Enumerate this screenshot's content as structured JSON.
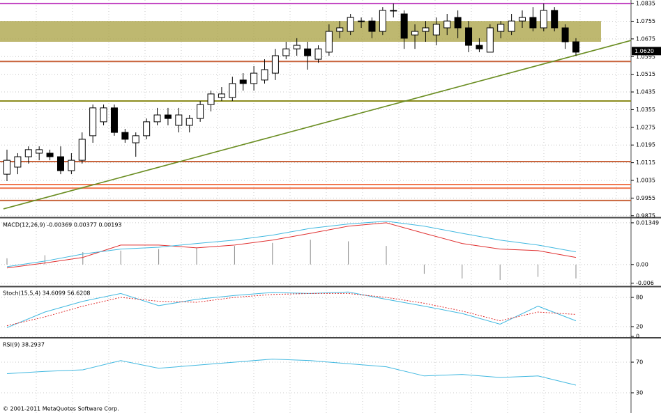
{
  "chart_data": [
    {
      "type": "candlestick",
      "bull_color": "#ffffff",
      "bear_color": "#000000",
      "grid": true,
      "ylim": [
        0.9868,
        1.0851
      ],
      "yticks": [
        1.0835,
        1.0755,
        1.0675,
        1.0595,
        1.0515,
        1.0435,
        1.0355,
        1.0275,
        1.0195,
        1.0115,
        1.0035,
        0.9955,
        0.9875
      ],
      "last_price": {
        "value": 1.062,
        "label": "1.0620"
      },
      "open": [
        1.0063,
        1.0095,
        1.0142,
        1.0158,
        1.0158,
        1.0142,
        1.0079,
        1.0126,
        1.0237,
        1.03,
        1.0363,
        1.0252,
        1.0205,
        1.0237,
        1.03,
        1.0331,
        1.0284,
        1.0284,
        1.0315,
        1.0378,
        1.041,
        1.041,
        1.0489,
        1.0473,
        1.0489,
        1.052,
        1.0599,
        1.063,
        1.063,
        1.0583,
        1.0615,
        1.0709,
        1.0709,
        1.0756,
        1.0756,
        1.0709,
        1.0804,
        1.0788,
        1.0693,
        1.0709,
        1.0693,
        1.0725,
        1.0772,
        1.0725,
        1.0646,
        1.0615,
        1.0709,
        1.0709,
        1.0756,
        1.0772,
        1.0725,
        1.0804,
        1.0725,
        1.0662
      ],
      "high": [
        1.0174,
        1.0158,
        1.0189,
        1.0189,
        1.0174,
        1.0189,
        1.0158,
        1.0252,
        1.0378,
        1.0378,
        1.0378,
        1.0268,
        1.0252,
        1.0315,
        1.0363,
        1.0363,
        1.0363,
        1.0331,
        1.0394,
        1.0441,
        1.0457,
        1.0504,
        1.052,
        1.0552,
        1.0583,
        1.063,
        1.0662,
        1.0678,
        1.0662,
        1.0646,
        1.0741,
        1.0756,
        1.0788,
        1.0772,
        1.0772,
        1.0819,
        1.0835,
        1.0804,
        1.0741,
        1.0756,
        1.0772,
        1.0788,
        1.0804,
        1.0756,
        1.0678,
        1.0741,
        1.0756,
        1.0788,
        1.0804,
        1.0819,
        1.0835,
        1.0819,
        1.0741,
        1.0678
      ],
      "low": [
        1.0032,
        1.0063,
        1.0111,
        1.0126,
        1.0126,
        1.0063,
        1.0063,
        1.0111,
        1.0205,
        1.0284,
        1.0237,
        1.0205,
        1.0142,
        1.0221,
        1.0284,
        1.0284,
        1.0252,
        1.0252,
        1.03,
        1.0347,
        1.0394,
        1.0394,
        1.0441,
        1.0441,
        1.0473,
        1.0489,
        1.0583,
        1.0599,
        1.0536,
        1.0567,
        1.0599,
        1.0678,
        1.0693,
        1.0725,
        1.0678,
        1.0693,
        1.0772,
        1.063,
        1.063,
        1.0662,
        1.0646,
        1.0693,
        1.0678,
        1.0615,
        1.0615,
        1.0615,
        1.0678,
        1.0693,
        1.0725,
        1.0709,
        1.0709,
        1.0709,
        1.063,
        1.0599
      ],
      "close": [
        1.0126,
        1.0142,
        1.0174,
        1.0174,
        1.0142,
        1.0079,
        1.0126,
        1.0221,
        1.0363,
        1.0363,
        1.0252,
        1.0221,
        1.0237,
        1.03,
        1.0331,
        1.0315,
        1.0331,
        1.0315,
        1.0378,
        1.0426,
        1.0426,
        1.0473,
        1.0473,
        1.052,
        1.0536,
        1.0599,
        1.063,
        1.0646,
        1.0599,
        1.063,
        1.0709,
        1.0725,
        1.0772,
        1.0756,
        1.0709,
        1.0804,
        1.0804,
        1.0678,
        1.0709,
        1.0725,
        1.0741,
        1.0756,
        1.0725,
        1.0646,
        1.063,
        1.0725,
        1.0741,
        1.0756,
        1.0772,
        1.0725,
        1.0804,
        1.0725,
        1.0662,
        1.0615
      ],
      "band": [
        1.0662,
        1.0756
      ],
      "band_color": "#a8a040",
      "hlines": [
        {
          "value": 1.0835,
          "color": "#c040c0"
        },
        {
          "value": 1.0573,
          "color": "#c8643c"
        },
        {
          "value": 1.0394,
          "color": "#8c8c1e"
        },
        {
          "value": 1.012,
          "color": "#c8643c"
        },
        {
          "value": 1.0016,
          "color": "#f07850"
        },
        {
          "value": 1.0,
          "color": "#f07850"
        },
        {
          "value": 0.9944,
          "color": "#c8643c"
        }
      ],
      "trendline": {
        "start": 0.9906,
        "end": 1.0668,
        "color": "#6b8e23"
      }
    },
    {
      "type": "macd",
      "label": "MACD(12,26,9) -0.00369 0.00377 0.00193",
      "ylim": [
        -0.0068,
        0.0146
      ],
      "yticks": [
        0.01349,
        {
          "value": 0,
          "label": "0.00"
        },
        -0.006
      ],
      "histogram": [
        0.002,
        0.003,
        0.004,
        0.0045,
        0.005,
        0.0055,
        0.006,
        0.007,
        0.008,
        0.0075,
        0.006,
        -0.003,
        -0.0045,
        -0.005,
        -0.004,
        -0.0045
      ],
      "series": [
        {
          "color": "#e03030",
          "values": [
            -0.0011,
            0.0005,
            0.0023,
            0.0063,
            0.0063,
            0.0054,
            0.0063,
            0.0079,
            0.0101,
            0.0124,
            0.0135,
            0.0101,
            0.0068,
            0.005,
            0.0045,
            0.0023
          ]
        },
        {
          "color": "#40b8e0",
          "values": [
            -0.0007,
            0.0011,
            0.0034,
            0.005,
            0.0056,
            0.0068,
            0.0079,
            0.0095,
            0.0117,
            0.0131,
            0.014,
            0.0124,
            0.0101,
            0.0079,
            0.0063,
            0.0041
          ]
        }
      ]
    },
    {
      "type": "line",
      "label": "Stoch(15,5,4) 34.6099 56.6208",
      "ylim": [
        0,
        100
      ],
      "yticks": [
        0,
        20,
        80
      ],
      "series": [
        {
          "color": "#40b8e0",
          "dash": false,
          "values": [
            18,
            50,
            72,
            88,
            63,
            76,
            84,
            90,
            88,
            91,
            76,
            62,
            47,
            25,
            62,
            32
          ]
        },
        {
          "color": "#e03030",
          "dash": true,
          "values": [
            22,
            40,
            62,
            80,
            72,
            70,
            80,
            86,
            88,
            88,
            80,
            68,
            52,
            32,
            50,
            45
          ]
        }
      ]
    },
    {
      "type": "line",
      "label": "RSI(9) 38.2937",
      "ylim": [
        0,
        100
      ],
      "yticks": [
        30,
        70
      ],
      "series": [
        {
          "color": "#40b8e0",
          "dash": false,
          "values": [
            55,
            58,
            60,
            72,
            62,
            66,
            70,
            74,
            72,
            68,
            64,
            52,
            54,
            50,
            52,
            40
          ]
        }
      ]
    }
  ],
  "footer": "© 2001-2011 MetaQuotes Software Corp."
}
